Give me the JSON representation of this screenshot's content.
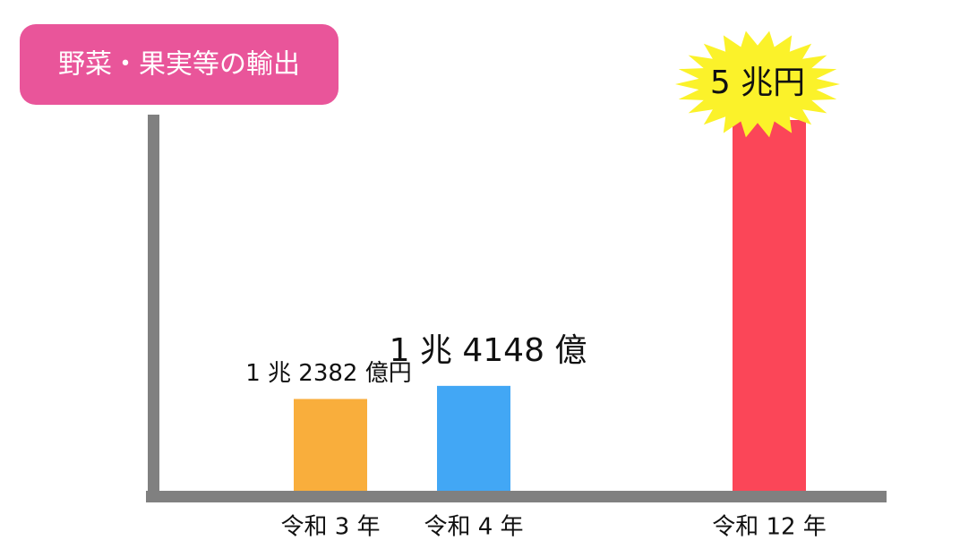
{
  "chart_data": {
    "type": "bar",
    "title": "野菜・果実等の輸出",
    "categories": [
      "令和 3 年",
      "令和 4 年",
      "令和 12 年"
    ],
    "values": [
      12382,
      14148,
      50000
    ],
    "value_labels": [
      "1 兆 2382 億円",
      "1 兆 4148 億",
      "5 兆円"
    ],
    "colors": [
      "#f9ae3c",
      "#42a7f5",
      "#fb4658"
    ],
    "ylim": [
      0,
      50000
    ]
  }
}
